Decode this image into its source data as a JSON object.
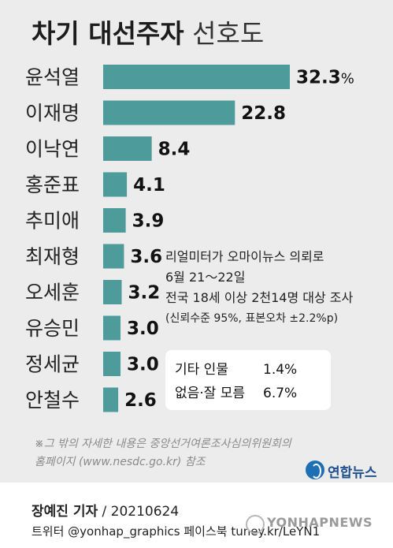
{
  "title": {
    "bold": "차기 대선주자",
    "light": "선호도"
  },
  "chart_data": {
    "type": "bar",
    "orientation": "horizontal",
    "title": "차기 대선주자 선호도",
    "categories": [
      "윤석열",
      "이재명",
      "이낙연",
      "홍준표",
      "추미애",
      "최재형",
      "오세훈",
      "유승민",
      "정세균",
      "안철수"
    ],
    "values": [
      32.3,
      22.8,
      8.4,
      4.1,
      3.9,
      3.6,
      3.2,
      3.0,
      3.0,
      2.6
    ],
    "value_labels": [
      "32.3",
      "22.8",
      "8.4",
      "4.1",
      "3.9",
      "3.6",
      "3.2",
      "3.0",
      "3.0",
      "2.6"
    ],
    "value_suffix": "%",
    "xlim": [
      0,
      32.3
    ],
    "bar_color": "#4e9b9b",
    "grid": false,
    "legend": "none"
  },
  "survey_info": {
    "line1": "리얼미터가 오마이뉴스 의뢰로",
    "line2": "6월 21～22일",
    "line3": "전국 18세 이상 2천14명 대상 조사",
    "line4": "(신뢰수준 95%, 표본오차 ±2.2%p)"
  },
  "others": [
    {
      "label": "기타 인물",
      "value": "1.4%"
    },
    {
      "label": "없음·잘 모름",
      "value": "6.7%"
    }
  ],
  "note": {
    "line1": "※그 밖의 자세한 내용은 중앙선거여론조사심의위원회의",
    "line2": "홈페이지 (www.nesdc.go.kr) 참조"
  },
  "brand": {
    "name": "연합뉴스",
    "color": "#1f4f8f"
  },
  "credit": {
    "author": "장예진 기자",
    "date": " / 20210624"
  },
  "social": "트위터 @yonhap_graphics  페이스북 tuney.kr/LeYN1",
  "watermark": "YONHAPNEWS"
}
